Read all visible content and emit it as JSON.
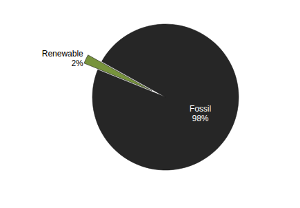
{
  "chart_data": {
    "type": "pie",
    "categories": [
      "Renewable",
      "Fossil"
    ],
    "values": [
      2,
      98
    ],
    "value_labels": [
      "2%",
      "98%"
    ],
    "colors": [
      "#77933c",
      "#262626"
    ],
    "data_labels": true
  }
}
